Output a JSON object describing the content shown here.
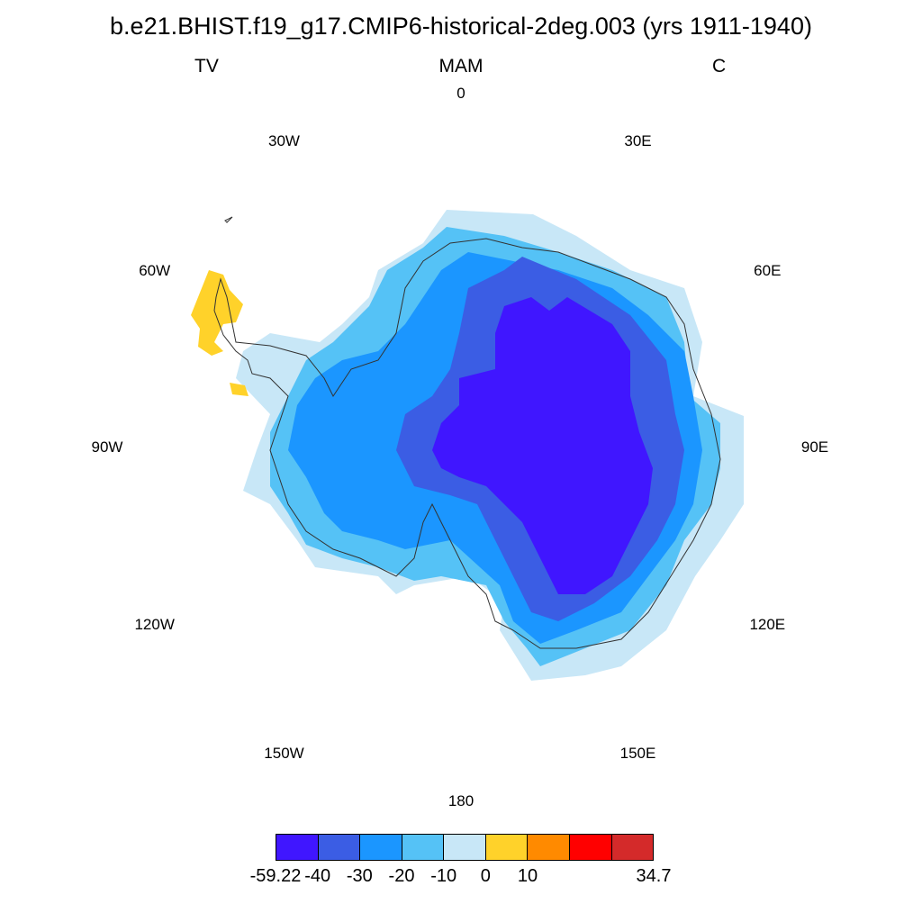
{
  "title": "b.e21.BHIST.f19_g17.CMIP6-historical-2deg.003 (yrs 1911-1940)",
  "left_label": "TV",
  "center_label": "MAM",
  "right_label": "C",
  "map": {
    "projection": "south-polar-stereographic",
    "longitude_labels": [
      {
        "text": "0",
        "lon": 0
      },
      {
        "text": "30E",
        "lon": 30
      },
      {
        "text": "60E",
        "lon": 60
      },
      {
        "text": "90E",
        "lon": 90
      },
      {
        "text": "120E",
        "lon": 120
      },
      {
        "text": "150E",
        "lon": 150
      },
      {
        "text": "180",
        "lon": 180
      },
      {
        "text": "150W",
        "lon": -150
      },
      {
        "text": "120W",
        "lon": -120
      },
      {
        "text": "90W",
        "lon": -90
      },
      {
        "text": "60W",
        "lon": -60
      },
      {
        "text": "30W",
        "lon": -30
      }
    ]
  },
  "colorbar": {
    "colors": [
      "#4016ff",
      "#3b5de4",
      "#1b96ff",
      "#55c2f6",
      "#c8e7f7",
      "#ffd22a",
      "#ff8a00",
      "#ff0000",
      "#d42a2a"
    ],
    "labels": [
      "-59.22",
      "-40",
      "-30",
      "-20",
      "-10",
      "0",
      "10",
      "34.7"
    ],
    "label_edges": [
      0,
      1,
      2,
      3,
      4,
      5,
      6,
      9
    ]
  }
}
